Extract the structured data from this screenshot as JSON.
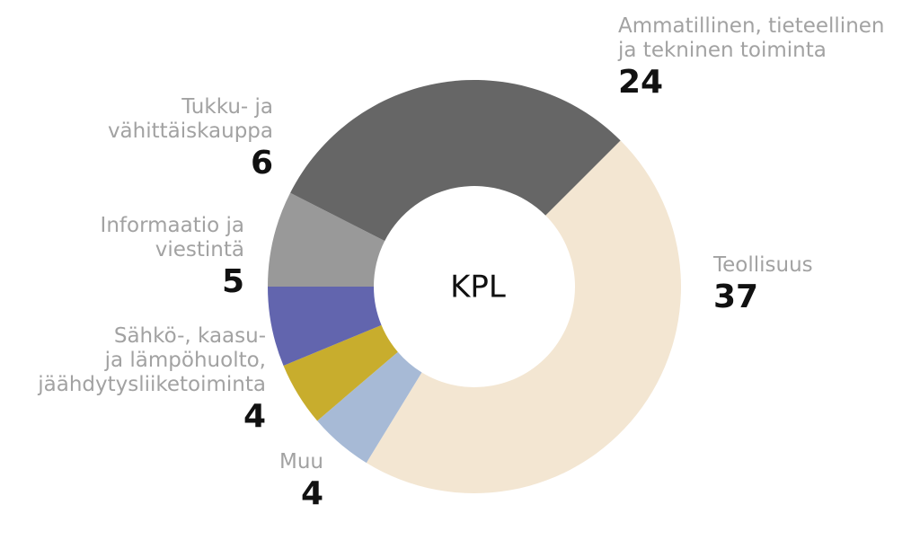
{
  "chart_data": {
    "type": "pie",
    "donut": true,
    "center_label": "KPL",
    "slices": [
      {
        "label_lines": [
          "Teollisuus"
        ],
        "value": 37,
        "color": "#f3e6d2"
      },
      {
        "label_lines": [
          "Muu"
        ],
        "value": 4,
        "color": "#a7bad6"
      },
      {
        "label_lines": [
          "Sähkö-, kaasu-",
          "ja lämpöhuolto,",
          "jäähdytysliiketoiminta"
        ],
        "value": 4,
        "color": "#c8ad2d"
      },
      {
        "label_lines": [
          "Informaatio ja",
          "viestintä"
        ],
        "value": 5,
        "color": "#6265ae"
      },
      {
        "label_lines": [
          "Tukku- ja",
          "vähittäiskauppa"
        ],
        "value": 6,
        "color": "#999999"
      },
      {
        "label_lines": [
          "Ammatillinen, tieteellinen",
          "ja tekninen toiminta"
        ],
        "value": 24,
        "color": "#666666"
      }
    ]
  }
}
